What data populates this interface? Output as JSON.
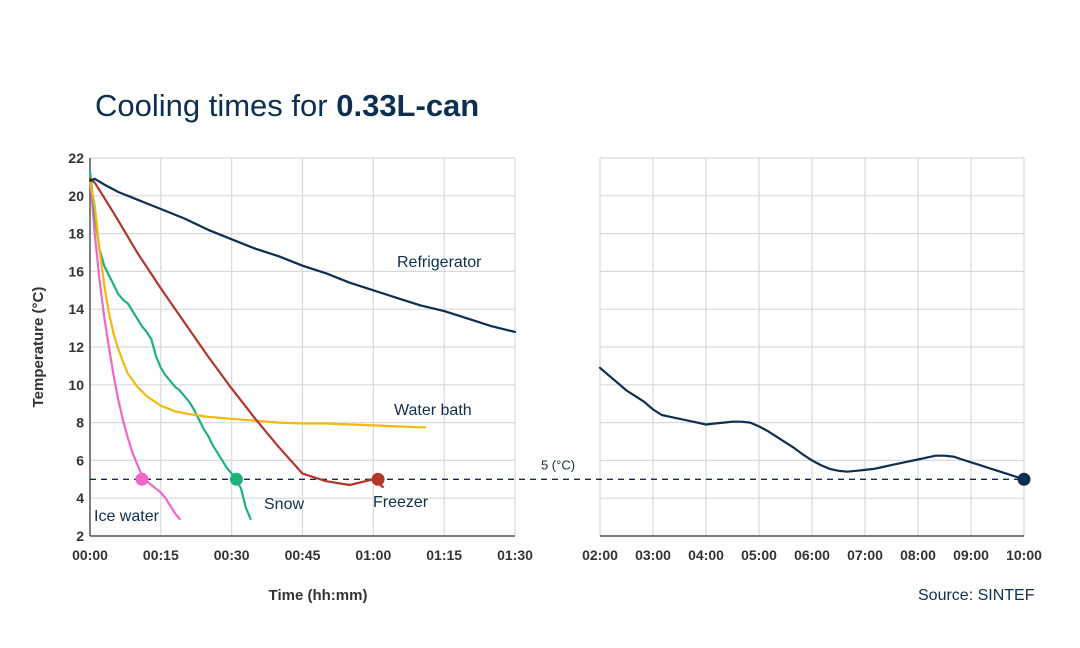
{
  "title": {
    "prefix": "Cooling times for ",
    "bold": "0.33L-can"
  },
  "source": "Source: SINTEF",
  "chart_data": {
    "type": "line",
    "title": "Cooling times for 0.33L-can",
    "xlabel": "Time (hh:mm)",
    "ylabel": "Temperature (°C)",
    "ylim": [
      2,
      22
    ],
    "yticks": [
      2,
      4,
      6,
      8,
      10,
      12,
      14,
      16,
      18,
      20,
      22
    ],
    "grid": true,
    "legend": "inline labels",
    "x_unit": "minutes",
    "panels": [
      {
        "xlim": [
          0,
          90
        ],
        "ticks": [
          {
            "v": 0,
            "label": "00:00"
          },
          {
            "v": 15,
            "label": "00:15"
          },
          {
            "v": 30,
            "label": "00:30"
          },
          {
            "v": 45,
            "label": "00:45"
          },
          {
            "v": 60,
            "label": "01:00"
          },
          {
            "v": 75,
            "label": "01:15"
          },
          {
            "v": 90,
            "label": "01:30"
          }
        ]
      },
      {
        "xlim": [
          120,
          600
        ],
        "ticks": [
          {
            "v": 120,
            "label": "02:00"
          },
          {
            "v": 180,
            "label": "03:00"
          },
          {
            "v": 240,
            "label": "04:00"
          },
          {
            "v": 300,
            "label": "05:00"
          },
          {
            "v": 360,
            "label": "06:00"
          },
          {
            "v": 420,
            "label": "07:00"
          },
          {
            "v": 480,
            "label": "08:00"
          },
          {
            "v": 540,
            "label": "09:00"
          },
          {
            "v": 600,
            "label": "10:00"
          }
        ]
      }
    ],
    "reference_line": {
      "y": 5,
      "label": "5 (°C)",
      "color": "#0d2f52"
    },
    "series": [
      {
        "name": "Ice water",
        "color": "#f067c8",
        "x": [
          0,
          0.5,
          1,
          1.5,
          2,
          3,
          4,
          5,
          6,
          7,
          8,
          9,
          10,
          11,
          12,
          13,
          14,
          15,
          16,
          17,
          18,
          19
        ],
        "y": [
          21,
          19.5,
          18,
          16.8,
          15.6,
          13.6,
          12,
          10.5,
          9.2,
          8.1,
          7.2,
          6.4,
          5.8,
          5.2,
          4.9,
          4.7,
          4.5,
          4.3,
          4.0,
          3.6,
          3.2,
          2.9
        ],
        "marker": {
          "x": 11,
          "y": 5
        }
      },
      {
        "name": "Snow",
        "color": "#1db37a",
        "x": [
          0,
          1,
          2,
          3,
          4,
          5,
          6,
          7,
          8,
          9,
          10,
          11,
          12,
          13,
          14,
          15,
          16,
          17,
          18,
          19,
          20,
          21,
          22,
          23,
          24,
          25,
          26,
          27,
          28,
          29,
          30,
          31,
          32,
          33,
          34
        ],
        "y": [
          21.3,
          19,
          17.2,
          16.3,
          15.8,
          15.3,
          14.8,
          14.5,
          14.3,
          13.9,
          13.5,
          13.1,
          12.8,
          12.4,
          11.5,
          10.9,
          10.5,
          10.2,
          9.9,
          9.7,
          9.4,
          9.1,
          8.7,
          8.2,
          7.7,
          7.3,
          6.8,
          6.4,
          6.0,
          5.6,
          5.3,
          5.0,
          4.5,
          3.5,
          2.9
        ],
        "marker": {
          "x": 31,
          "y": 5
        }
      },
      {
        "name": "Water bath",
        "color": "#f2b90f",
        "x": [
          0,
          1,
          2,
          3,
          4,
          5,
          6,
          7,
          8,
          10,
          12,
          15,
          18,
          21,
          25,
          30,
          35,
          40,
          45,
          50,
          55,
          60,
          65,
          70,
          71
        ],
        "y": [
          20.8,
          19.5,
          17.2,
          15.3,
          13.8,
          12.7,
          11.9,
          11.2,
          10.6,
          9.9,
          9.4,
          8.9,
          8.6,
          8.45,
          8.3,
          8.2,
          8.1,
          8.0,
          7.95,
          7.95,
          7.9,
          7.85,
          7.8,
          7.75,
          7.75
        ]
      },
      {
        "name": "Freezer",
        "color": "#b5352b",
        "x": [
          0,
          1,
          3,
          5,
          10,
          15,
          20,
          25,
          30,
          35,
          40,
          45,
          50,
          55,
          60,
          61,
          62
        ],
        "y": [
          20.9,
          20.7,
          19.9,
          19.1,
          17.0,
          15.1,
          13.3,
          11.5,
          9.8,
          8.2,
          6.7,
          5.3,
          4.9,
          4.7,
          5.0,
          4.8,
          4.6
        ],
        "marker": {
          "x": 61,
          "y": 5
        }
      },
      {
        "name": "Refrigerator",
        "color": "#0d2f52",
        "x": [
          0,
          1,
          3,
          6,
          9,
          12,
          15,
          20,
          25,
          30,
          35,
          40,
          45,
          50,
          55,
          60,
          65,
          70,
          75,
          80,
          85,
          90,
          120,
          130,
          140,
          150,
          160,
          170,
          180,
          190,
          200,
          210,
          220,
          230,
          240,
          250,
          260,
          270,
          280,
          290,
          300,
          310,
          320,
          330,
          340,
          350,
          360,
          370,
          380,
          390,
          400,
          410,
          420,
          430,
          440,
          450,
          460,
          470,
          480,
          490,
          500,
          510,
          520,
          530,
          540,
          550,
          560,
          570,
          580,
          590,
          600
        ],
        "y": [
          20.8,
          20.9,
          20.6,
          20.2,
          19.9,
          19.6,
          19.3,
          18.8,
          18.2,
          17.7,
          17.2,
          16.8,
          16.3,
          15.9,
          15.4,
          15.0,
          14.6,
          14.2,
          13.9,
          13.5,
          13.1,
          12.8,
          10.9,
          10.5,
          10.1,
          9.7,
          9.4,
          9.1,
          8.7,
          8.4,
          8.3,
          8.2,
          8.1,
          8.0,
          7.9,
          7.95,
          8.0,
          8.05,
          8.05,
          8.0,
          7.8,
          7.55,
          7.25,
          6.95,
          6.65,
          6.3,
          6.0,
          5.75,
          5.55,
          5.45,
          5.4,
          5.45,
          5.5,
          5.55,
          5.65,
          5.75,
          5.85,
          5.95,
          6.05,
          6.15,
          6.25,
          6.25,
          6.2,
          6.05,
          5.9,
          5.75,
          5.6,
          5.45,
          5.3,
          5.15,
          5.0
        ],
        "marker": {
          "x": 600,
          "y": 5
        }
      }
    ]
  }
}
